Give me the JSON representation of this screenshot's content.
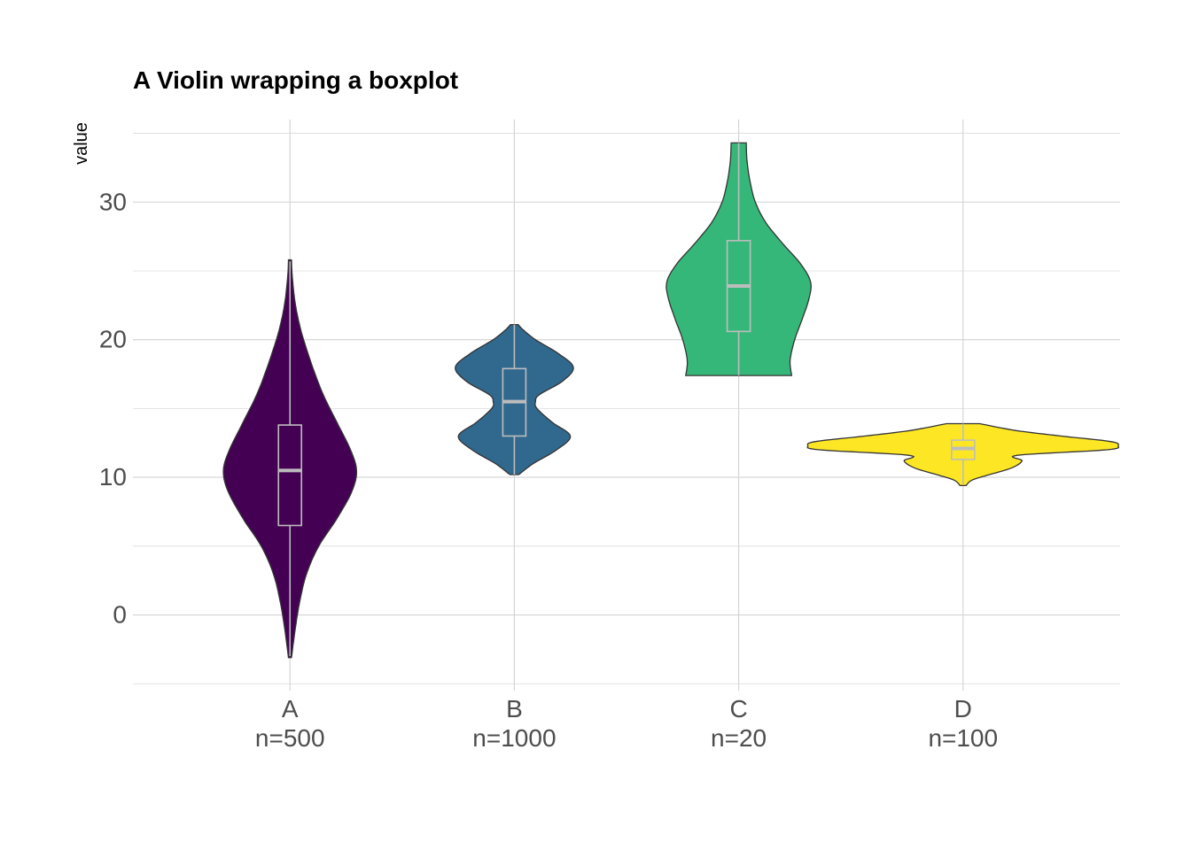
{
  "chart_data": {
    "type": "violin",
    "title": "A Violin wrapping a boxplot",
    "xlabel": "",
    "ylabel": "value",
    "ylim": [
      -5.5,
      36
    ],
    "yticks": [
      0,
      10,
      20,
      30
    ],
    "grid": true,
    "legend": "none",
    "categories": [
      "A",
      "B",
      "C",
      "D"
    ],
    "category_labels": [
      {
        "name": "A",
        "count": "n=500"
      },
      {
        "name": "B",
        "count": "n=1000"
      },
      {
        "name": "C",
        "count": "n=20"
      },
      {
        "name": "D",
        "count": "n=100"
      }
    ],
    "groups": [
      {
        "category": "A",
        "color": "#440154",
        "box": {
          "min": -3,
          "q1": 6.5,
          "median": 10.5,
          "q3": 13.8,
          "max": 25.7
        },
        "density": [
          [
            -3.1,
            0.02
          ],
          [
            -1,
            0.07
          ],
          [
            1,
            0.13
          ],
          [
            3,
            0.22
          ],
          [
            5,
            0.38
          ],
          [
            7,
            0.62
          ],
          [
            9,
            0.82
          ],
          [
            10.5,
            0.88
          ],
          [
            12,
            0.8
          ],
          [
            14,
            0.62
          ],
          [
            16,
            0.44
          ],
          [
            18,
            0.3
          ],
          [
            20,
            0.18
          ],
          [
            21,
            0.13
          ],
          [
            22,
            0.09
          ],
          [
            23,
            0.06
          ],
          [
            24,
            0.04
          ],
          [
            25,
            0.025
          ],
          [
            25.8,
            0.02
          ]
        ]
      },
      {
        "category": "B",
        "color": "#31688e",
        "box": {
          "min": 10.2,
          "q1": 13,
          "median": 15.5,
          "q3": 17.9,
          "max": 21.1
        },
        "density": [
          [
            10.2,
            0.06
          ],
          [
            11,
            0.25
          ],
          [
            12,
            0.56
          ],
          [
            13,
            0.74
          ],
          [
            14,
            0.5
          ],
          [
            15,
            0.3
          ],
          [
            15.5,
            0.28
          ],
          [
            16,
            0.33
          ],
          [
            17,
            0.64
          ],
          [
            18,
            0.78
          ],
          [
            19,
            0.58
          ],
          [
            20,
            0.28
          ],
          [
            20.7,
            0.12
          ],
          [
            21.1,
            0.05
          ]
        ]
      },
      {
        "category": "C",
        "color": "#35b779",
        "box": {
          "min": 17.4,
          "q1": 20.6,
          "median": 23.9,
          "q3": 27.2,
          "max": 34.3
        },
        "density": [
          [
            17.4,
            0.7
          ],
          [
            18.5,
            0.68
          ],
          [
            20,
            0.74
          ],
          [
            21.5,
            0.84
          ],
          [
            23,
            0.93
          ],
          [
            24.2,
            0.95
          ],
          [
            25.5,
            0.82
          ],
          [
            27,
            0.58
          ],
          [
            28.5,
            0.36
          ],
          [
            30,
            0.22
          ],
          [
            31.5,
            0.15
          ],
          [
            33,
            0.11
          ],
          [
            34.3,
            0.1
          ]
        ]
      },
      {
        "category": "D",
        "color": "#fde725",
        "box": {
          "min": 9.5,
          "q1": 11.3,
          "median": 12.1,
          "q3": 12.7,
          "max": 13.9
        },
        "density": [
          [
            9.4,
            0.04
          ],
          [
            9.8,
            0.12
          ],
          [
            10.2,
            0.35
          ],
          [
            10.7,
            0.65
          ],
          [
            11.2,
            0.78
          ],
          [
            11.6,
            0.72
          ],
          [
            12.0,
            1.9
          ],
          [
            12.3,
            2.05
          ],
          [
            12.6,
            1.95
          ],
          [
            13.0,
            1.3
          ],
          [
            13.4,
            0.7
          ],
          [
            13.9,
            0.22
          ]
        ]
      }
    ]
  }
}
